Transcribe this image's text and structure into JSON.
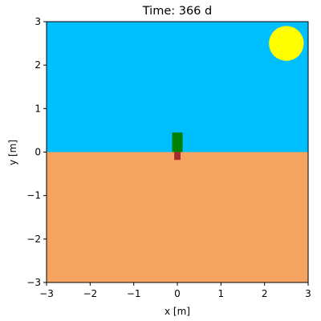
{
  "chart_data": {
    "type": "scatter",
    "title": "Time: 366 d",
    "xlabel": "x [m]",
    "ylabel": "y [m]",
    "xlim": [
      -3,
      3
    ],
    "ylim": [
      -3,
      3
    ],
    "xticks": [
      -3,
      -2,
      -1,
      0,
      1,
      2,
      3
    ],
    "yticks": [
      -3,
      -2,
      -1,
      0,
      1,
      2,
      3
    ],
    "xtick_labels": [
      "−3",
      "−2",
      "−1",
      "0",
      "1",
      "2",
      "3"
    ],
    "ytick_labels": [
      "−3",
      "−2",
      "−1",
      "0",
      "1",
      "2",
      "3"
    ],
    "grid": false,
    "regions": [
      {
        "name": "sky",
        "y_from": 0,
        "y_to": 3,
        "color": "#00BFFF"
      },
      {
        "name": "soil",
        "y_from": -3,
        "y_to": 0,
        "color": "#F4A460"
      }
    ],
    "sun": {
      "cx": 2.5,
      "cy": 2.5,
      "r": 0.4,
      "color": "#FFFF00"
    },
    "plant": {
      "x_from": -0.12,
      "x_to": 0.12,
      "shoot_top": 0.45,
      "root_bottom": -0.18,
      "shoot_color": "#008000",
      "root_color": "#A52A2A"
    }
  }
}
